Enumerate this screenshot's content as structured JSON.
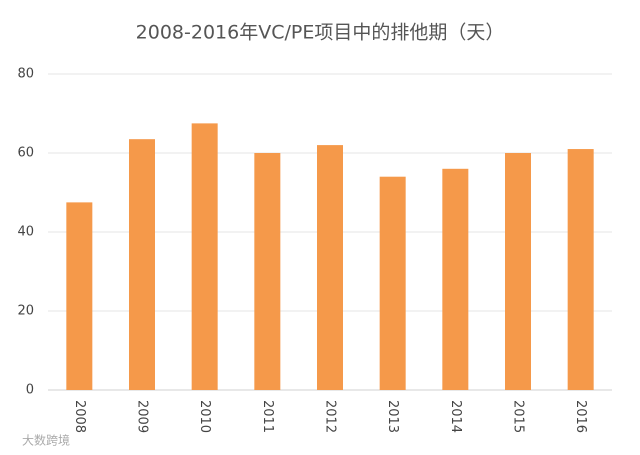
{
  "chart_data": {
    "type": "bar",
    "title": "2008-2016年VC/PE项目中的排他期（天）",
    "categories": [
      "2008",
      "2009",
      "2010",
      "2011",
      "2012",
      "2013",
      "2014",
      "2015",
      "2016"
    ],
    "values": [
      47.5,
      63.5,
      67.5,
      60,
      62,
      54,
      56,
      60,
      61
    ],
    "color": "#f5994a",
    "ylim": [
      0,
      80
    ],
    "yticks": [
      0,
      20,
      40,
      60,
      80
    ],
    "grid": true
  },
  "watermark": "大数跨境"
}
